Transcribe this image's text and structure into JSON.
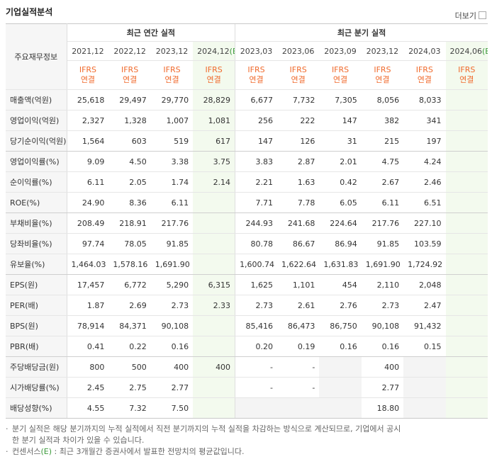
{
  "header": {
    "title": "기업실적분석",
    "more": "더보기"
  },
  "table": {
    "corner": "주요재무정보",
    "annual_group": "최근 연간 실적",
    "quarterly_group": "최근 분기 실적",
    "periods": [
      {
        "date": "2021,12"
      },
      {
        "date": "2022,12"
      },
      {
        "date": "2023,12"
      },
      {
        "date": "2024,12",
        "mark": "(E)"
      },
      {
        "date": "2023,03"
      },
      {
        "date": "2023,06"
      },
      {
        "date": "2023,09"
      },
      {
        "date": "2023,12"
      },
      {
        "date": "2024,03"
      },
      {
        "date": "2024,06",
        "mark": "(E)"
      }
    ],
    "standards": [
      {
        "standard": "IFRS",
        "basis": "연결"
      },
      {
        "standard": "IFRS",
        "basis": "연결"
      },
      {
        "standard": "IFRS",
        "basis": "연결"
      },
      {
        "standard": "IFRS",
        "basis": "연결"
      },
      {
        "standard": "IFRS",
        "basis": "연결"
      },
      {
        "standard": "IFRS",
        "basis": "연결"
      },
      {
        "standard": "IFRS",
        "basis": "연결"
      },
      {
        "standard": "IFRS",
        "basis": "연결"
      },
      {
        "standard": "IFRS",
        "basis": "연결"
      },
      {
        "standard": "IFRS",
        "basis": "연결"
      }
    ],
    "rows": [
      {
        "label": "매출액(억원)",
        "values": [
          "25,618",
          "29,497",
          "29,770",
          "28,829",
          "6,677",
          "7,732",
          "7,305",
          "8,056",
          "8,033",
          null
        ]
      },
      {
        "label": "영업이익(억원)",
        "values": [
          "2,327",
          "1,328",
          "1,007",
          "1,081",
          "256",
          "222",
          "147",
          "382",
          "341",
          null
        ]
      },
      {
        "label": "당기순이익(억원)",
        "values": [
          "1,564",
          "603",
          "519",
          "617",
          "147",
          "126",
          "31",
          "215",
          "197",
          null
        ]
      },
      {
        "label": "영업이익률(%)",
        "values": [
          "9.09",
          "4.50",
          "3.38",
          "3.75",
          "3.83",
          "2.87",
          "2.01",
          "4.75",
          "4.24",
          null
        ]
      },
      {
        "label": "순이익률(%)",
        "values": [
          "6.11",
          "2.05",
          "1.74",
          "2.14",
          "2.21",
          "1.63",
          "0.42",
          "2.67",
          "2.46",
          null
        ]
      },
      {
        "label": "ROE(%)",
        "values": [
          "24.90",
          "8.36",
          "6.11",
          null,
          "7.71",
          "7.78",
          "6.05",
          "6.11",
          "6.51",
          null
        ]
      },
      {
        "label": "부채비율(%)",
        "values": [
          "208.49",
          "218.91",
          "217.76",
          null,
          "244.93",
          "241.68",
          "224.64",
          "217.76",
          "227.10",
          null
        ]
      },
      {
        "label": "당좌비율(%)",
        "values": [
          "97.74",
          "78.05",
          "91.85",
          null,
          "80.78",
          "86.67",
          "86.94",
          "91.85",
          "103.59",
          null
        ]
      },
      {
        "label": "유보율(%)",
        "values": [
          "1,464.03",
          "1,578.16",
          "1,691.90",
          null,
          "1,600.74",
          "1,622.64",
          "1,631.83",
          "1,691.90",
          "1,724.92",
          null
        ]
      },
      {
        "label": "EPS(원)",
        "values": [
          "17,457",
          "6,772",
          "5,290",
          "6,315",
          "1,625",
          "1,101",
          "454",
          "2,110",
          "2,048",
          null
        ]
      },
      {
        "label": "PER(배)",
        "values": [
          "1.87",
          "2.69",
          "2.73",
          "2.33",
          "2.73",
          "2.61",
          "2.76",
          "2.73",
          "2.47",
          null
        ]
      },
      {
        "label": "BPS(원)",
        "values": [
          "78,914",
          "84,371",
          "90,108",
          null,
          "85,416",
          "86,473",
          "86,750",
          "90,108",
          "91,432",
          null
        ]
      },
      {
        "label": "PBR(배)",
        "values": [
          "0.41",
          "0.22",
          "0.16",
          null,
          "0.20",
          "0.19",
          "0.16",
          "0.16",
          "0.15",
          null
        ]
      },
      {
        "label": "주당배당금(원)",
        "values": [
          "800",
          "500",
          "400",
          "400",
          "-",
          "-",
          null,
          "400",
          null,
          null
        ]
      },
      {
        "label": "시가배당률(%)",
        "values": [
          "2.45",
          "2.75",
          "2.77",
          null,
          "-",
          "-",
          null,
          "2.77",
          null,
          null
        ]
      },
      {
        "label": "배당성향(%)",
        "values": [
          "4.55",
          "7.32",
          "7.50",
          null,
          null,
          null,
          null,
          "18.80",
          null,
          null
        ]
      }
    ]
  },
  "notes": [
    {
      "text": "분기 실적은 해당 분기까지의 누적 실적에서 직전 분기까지의 누적 실적을 차감하는 방식으로 계산되므로, 기업에서 공시한 분기 실적과 차이가 있을 수 있습니다."
    },
    {
      "prefix": "컨센서스",
      "mark": "(E)",
      "text": " : 최근 3개월간 증권사에서 발표한 전망치의 평균값입니다."
    }
  ]
}
